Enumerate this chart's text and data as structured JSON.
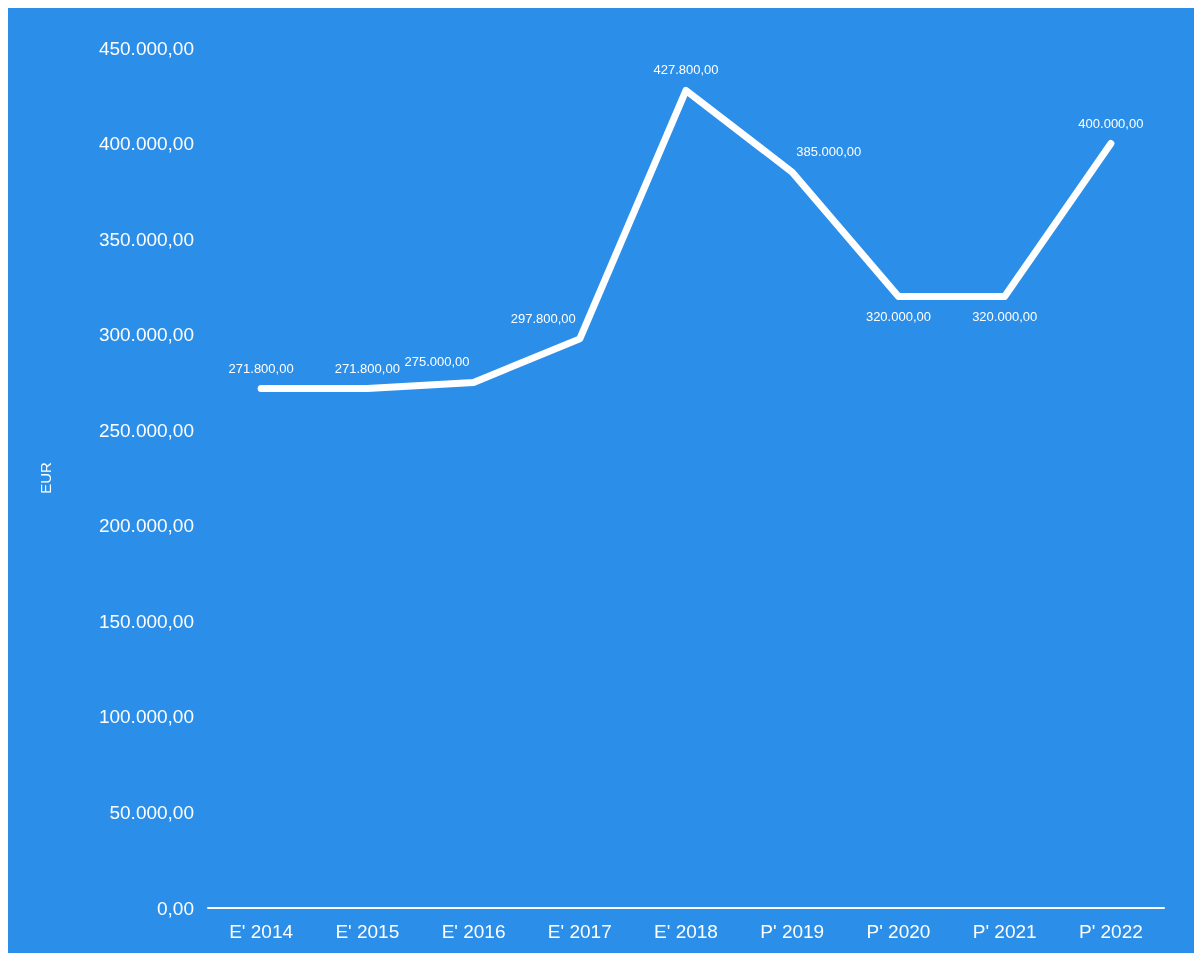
{
  "chart_data": {
    "type": "line",
    "ylabel": "EUR",
    "categories": [
      "E' 2014",
      "E' 2015",
      "E' 2016",
      "E' 2017",
      "E' 2018",
      "P' 2019",
      "P' 2020",
      "P' 2021",
      "P' 2022"
    ],
    "series": [
      {
        "color": "#ffffff",
        "values": [
          271800,
          271800,
          275000,
          297800,
          427800,
          385000,
          320000,
          320000,
          400000
        ],
        "value_labels": [
          "271.800,00",
          "271.800,00",
          "275.000,00",
          "297.800,00",
          "427.800,00",
          "385.000,00",
          "320.000,00",
          "320.000,00",
          "400.000,00"
        ]
      }
    ],
    "ylim": [
      0,
      450000
    ],
    "yticks": [
      {
        "value": 0,
        "label": "0,00"
      },
      {
        "value": 50000,
        "label": "50.000,00"
      },
      {
        "value": 100000,
        "label": "100.000,00"
      },
      {
        "value": 150000,
        "label": "150.000,00"
      },
      {
        "value": 200000,
        "label": "200.000,00"
      },
      {
        "value": 250000,
        "label": "250.000,00"
      },
      {
        "value": 300000,
        "label": "300.000,00"
      },
      {
        "value": 350000,
        "label": "350.000,00"
      },
      {
        "value": 400000,
        "label": "400.000,00"
      },
      {
        "value": 450000,
        "label": "450.000,00"
      }
    ],
    "grid": false,
    "marker": "none",
    "line_style": "solid"
  }
}
